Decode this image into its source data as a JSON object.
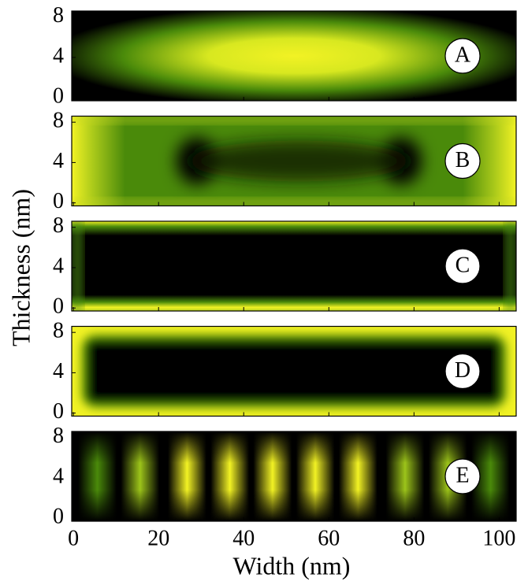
{
  "chart_data": {
    "type": "heatmap",
    "xlabel": "Width (nm)",
    "ylabel": "Thickness (nm)",
    "xlim": [
      -0.4,
      104
    ],
    "xticks": [
      0,
      20,
      40,
      60,
      80,
      100
    ],
    "ylim": [
      -0.3,
      8.6
    ],
    "yticks": [
      0,
      4,
      8
    ],
    "panels": [
      {
        "label": "A"
      },
      {
        "label": "B"
      },
      {
        "label": "C"
      },
      {
        "label": "D"
      },
      {
        "label": "E"
      }
    ]
  }
}
